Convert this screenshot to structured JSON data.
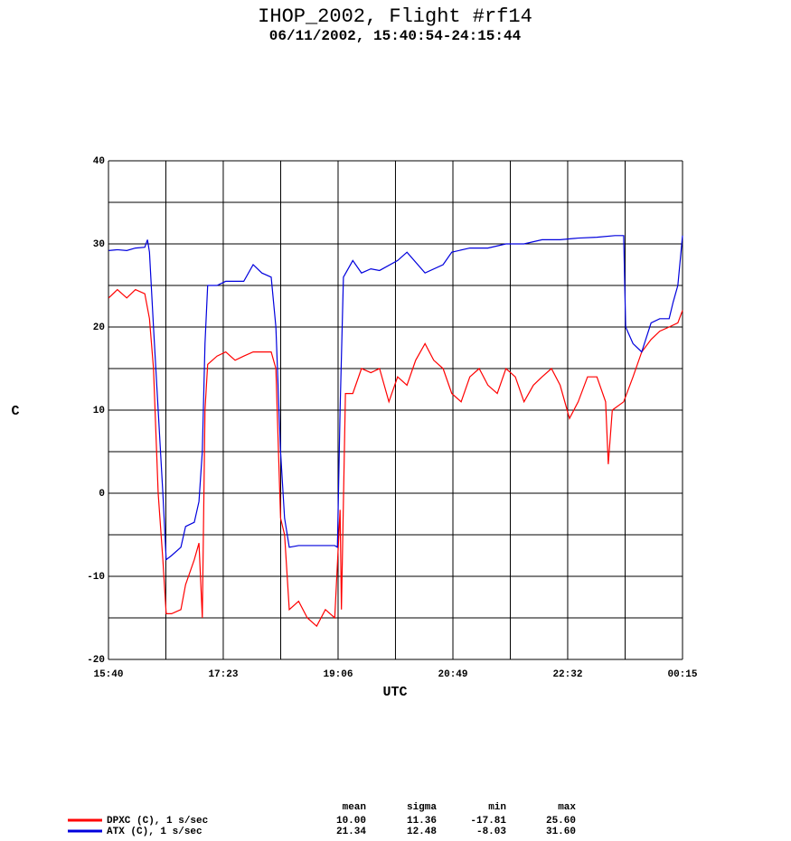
{
  "chart_data": {
    "type": "line",
    "title": "IHOP_2002, Flight #rf14",
    "subtitle": "06/11/2002, 15:40:54-24:15:44",
    "xlabel": "UTC",
    "ylabel": "C",
    "xlim": [
      15.667,
      24.25
    ],
    "ylim": [
      -20,
      40
    ],
    "xticks": [
      {
        "value": 15.667,
        "label": "15:40"
      },
      {
        "value": 17.383,
        "label": "17:23"
      },
      {
        "value": 19.1,
        "label": "19:06"
      },
      {
        "value": 20.817,
        "label": "20:49"
      },
      {
        "value": 22.533,
        "label": "22:32"
      },
      {
        "value": 24.25,
        "label": "00:15"
      }
    ],
    "xgrid": [
      16.525,
      18.242,
      19.958,
      21.675,
      23.392
    ],
    "yticks": [
      -20,
      -10,
      0,
      10,
      20,
      30,
      40
    ],
    "ygrid": [
      -15,
      -5,
      5,
      15,
      25,
      35
    ],
    "grid": true,
    "series": [
      {
        "name": "DPXC (C), 1 s/sec",
        "color": "#ff0000",
        "x": [
          15.67,
          15.8,
          15.94,
          16.07,
          16.21,
          16.28,
          16.34,
          16.41,
          16.48,
          16.53,
          16.61,
          16.75,
          16.82,
          16.95,
          17.02,
          17.07,
          17.11,
          17.15,
          17.29,
          17.42,
          17.56,
          17.69,
          17.83,
          17.96,
          18.1,
          18.17,
          18.24,
          18.3,
          18.37,
          18.51,
          18.64,
          18.78,
          18.91,
          19.05,
          19.13,
          19.15,
          19.21,
          19.32,
          19.45,
          19.59,
          19.72,
          19.86,
          19.99,
          20.13,
          20.26,
          20.4,
          20.53,
          20.67,
          20.8,
          20.94,
          21.07,
          21.21,
          21.34,
          21.48,
          21.61,
          21.75,
          21.88,
          22.02,
          22.15,
          22.29,
          22.42,
          22.56,
          22.69,
          22.83,
          22.97,
          23.1,
          23.14,
          23.2,
          23.37,
          23.51,
          23.64,
          23.78,
          23.91,
          24.05,
          24.18,
          24.25
        ],
        "values": [
          23.5,
          24.5,
          23.5,
          24.5,
          24,
          21,
          15,
          0,
          -8,
          -14.5,
          -14.5,
          -14,
          -11,
          -8,
          -6,
          -15,
          10,
          15.5,
          16.5,
          17,
          16,
          16.5,
          17,
          17,
          17,
          15,
          -3,
          -5,
          -14,
          -13,
          -15,
          -16,
          -14,
          -15,
          -2,
          -14,
          12,
          12,
          15,
          14.5,
          15,
          11,
          14,
          13,
          16,
          18,
          16,
          15,
          12,
          11,
          14,
          15,
          13,
          12,
          15,
          14,
          11,
          13,
          14,
          15,
          13,
          9,
          11,
          14,
          14,
          11,
          3.5,
          10,
          11,
          14,
          17,
          18.5,
          19.5,
          20,
          20.5,
          22
        ]
      },
      {
        "name": "ATX (C), 1 s/sec",
        "color": "#0000dd",
        "x": [
          15.67,
          15.8,
          15.94,
          16.07,
          16.21,
          16.25,
          16.28,
          16.34,
          16.41,
          16.48,
          16.53,
          16.61,
          16.75,
          16.82,
          16.95,
          17.02,
          17.07,
          17.11,
          17.15,
          17.29,
          17.42,
          17.56,
          17.69,
          17.83,
          17.96,
          18.1,
          18.17,
          18.24,
          18.3,
          18.37,
          18.51,
          18.64,
          18.78,
          18.91,
          19.05,
          19.09,
          19.13,
          19.18,
          19.32,
          19.45,
          19.59,
          19.72,
          19.99,
          20.13,
          20.4,
          20.67,
          20.8,
          21.07,
          21.34,
          21.61,
          21.88,
          22.15,
          22.42,
          22.69,
          22.97,
          23.24,
          23.37,
          23.4,
          23.51,
          23.64,
          23.78,
          23.91,
          24.05,
          24.11,
          24.18,
          24.25
        ],
        "values": [
          29.2,
          29.3,
          29.2,
          29.5,
          29.6,
          30.5,
          29,
          20,
          10,
          0,
          -8,
          -7.5,
          -6.5,
          -4,
          -3.5,
          -1,
          5,
          18,
          25,
          25,
          25.5,
          25.5,
          25.5,
          27.5,
          26.5,
          26,
          20,
          5,
          -3,
          -6.5,
          -6.3,
          -6.3,
          -6.3,
          -6.3,
          -6.3,
          -6.5,
          10,
          26,
          28,
          26.5,
          27,
          26.8,
          28,
          29,
          26.5,
          27.5,
          29,
          29.5,
          29.5,
          30,
          30,
          30.5,
          30.5,
          30.7,
          30.8,
          31,
          31,
          20,
          18,
          17,
          20.5,
          21,
          21,
          23,
          25,
          31
        ]
      }
    ],
    "stats": {
      "columns": [
        "mean",
        "sigma",
        "min",
        "max"
      ],
      "rows": [
        [
          "10.00",
          "11.36",
          "-17.81",
          "25.60"
        ],
        [
          "21.34",
          "12.48",
          "-8.03",
          "31.60"
        ]
      ]
    }
  }
}
